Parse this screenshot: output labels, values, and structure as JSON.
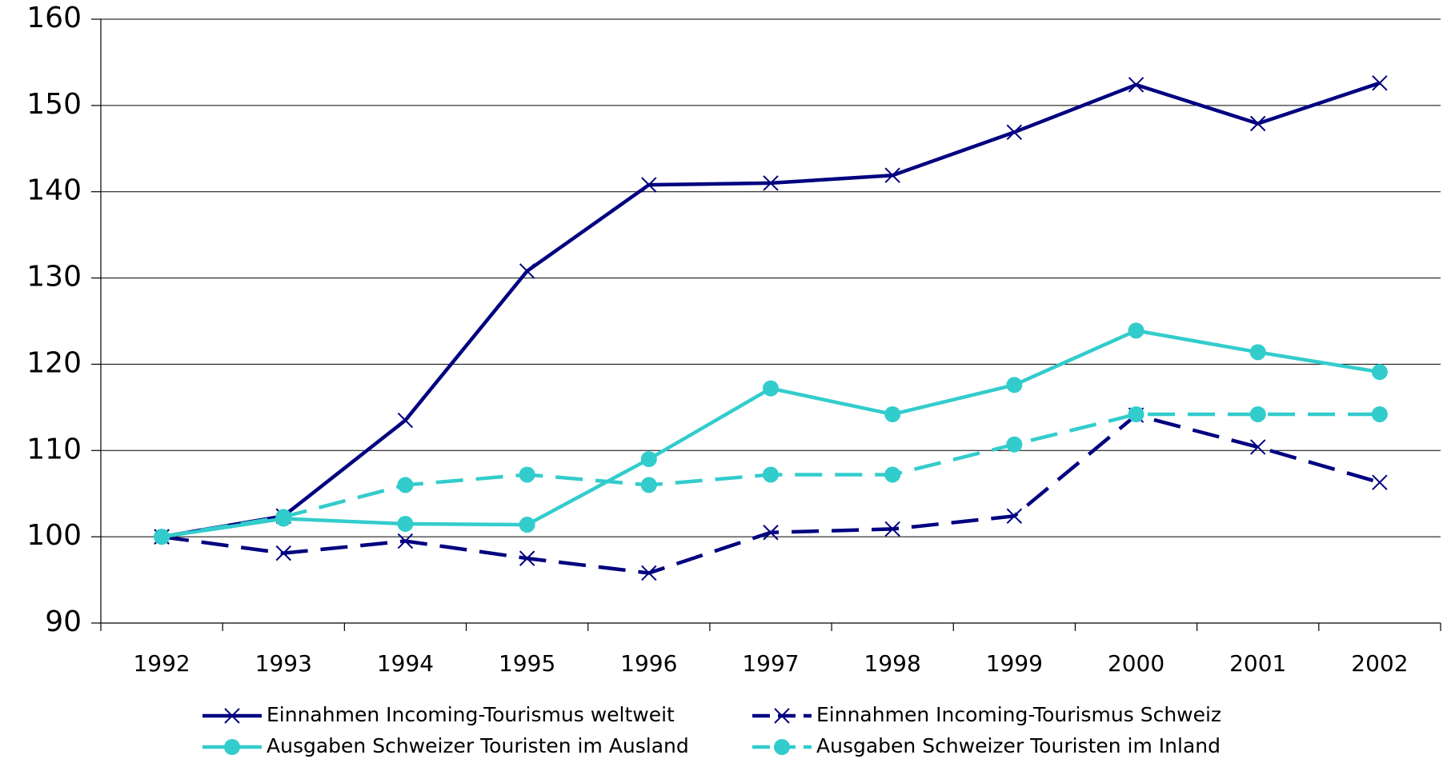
{
  "chart_data": {
    "type": "line",
    "categories": [
      "1992",
      "1993",
      "1994",
      "1995",
      "1996",
      "1997",
      "1998",
      "1999",
      "2000",
      "2001",
      "2002"
    ],
    "series": [
      {
        "name": "Einnahmen Incoming-Tourismus weltweit",
        "color": "#000080",
        "dash": false,
        "marker": "x",
        "values": [
          100,
          102.4,
          113.5,
          130.8,
          140.8,
          141.0,
          141.9,
          146.9,
          152.4,
          147.9,
          152.6
        ]
      },
      {
        "name": "Einnahmen Incoming-Tourismus Schweiz",
        "color": "#000080",
        "dash": true,
        "marker": "x",
        "values": [
          100,
          98.1,
          99.5,
          97.5,
          95.8,
          100.5,
          100.9,
          102.4,
          114.1,
          110.4,
          106.3
        ]
      },
      {
        "name": "Ausgaben Schweizer Touristen im Ausland",
        "color": "#33cccc",
        "dash": false,
        "marker": "circle",
        "values": [
          100,
          102.1,
          101.5,
          101.4,
          109.0,
          117.2,
          114.2,
          117.6,
          123.9,
          121.4,
          119.1
        ]
      },
      {
        "name": "Ausgaben Schweizer Touristen im Inland",
        "color": "#33cccc",
        "dash": true,
        "marker": "circle",
        "values": [
          100,
          102.3,
          106.0,
          107.2,
          106.0,
          107.2,
          107.2,
          110.7,
          114.2,
          114.2,
          114.2
        ]
      }
    ],
    "ylim": [
      90,
      160
    ],
    "yticks": [
      90,
      100,
      110,
      120,
      130,
      140,
      150,
      160
    ],
    "grid": true,
    "legend": "bottom"
  }
}
